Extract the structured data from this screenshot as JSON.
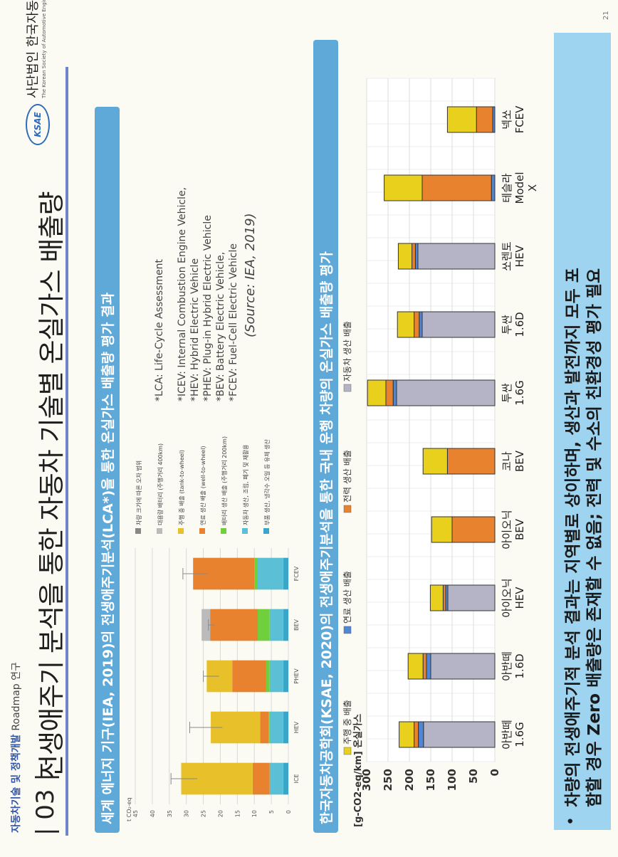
{
  "header": {
    "top_label_bold": "자동차기술 및 정책개발",
    "top_label_rest": "Roadmap 연구",
    "title_number": "| 03 |",
    "title": "전생애주기 분석을 통한 자동차 기술별 온실가스 배출량",
    "logo_text": "KSAE",
    "logo_name": "사단법인 한국자동차공학회",
    "logo_eng": "The Korean Society of Automotive Engineers"
  },
  "section1": {
    "banner": "세계 에너지 기구(IEA, 2019)의  전생애주기분석(LCA*)을 통한 온실가스 배출량 평가 결과"
  },
  "chart_data": [
    {
      "type": "bar",
      "stacked": true,
      "ylabel": "t CO₂-eq",
      "ylim": [
        0,
        45
      ],
      "yticks": [
        0,
        5,
        10,
        15,
        20,
        25,
        30,
        35,
        40,
        45
      ],
      "categories": [
        "ICE",
        "HEV",
        "PHEV",
        "BEV",
        "FCEV"
      ],
      "grid": true,
      "legend_position": "right",
      "legend": [
        {
          "name": "차량 크기에 따른 오차 범위",
          "color": "#888888"
        },
        {
          "name": "대용량 배터리 (주행거리 400km)",
          "color": "#bbbbbb"
        },
        {
          "name": "주행 중 배출 (tank-to-wheel)",
          "color": "#e8c12a"
        },
        {
          "name": "연료 생산 배출 (well-to-wheel)",
          "color": "#e8822e"
        },
        {
          "name": "배터리 생산 배출 (주행거리 200km)",
          "color": "#6fcf3d"
        },
        {
          "name": "자동차 생산, 조립, 폐기 및 재활용",
          "color": "#5bc0d6"
        },
        {
          "name": "부품 생산, 냉각수 오일 등 유체 생산",
          "color": "#3aa6c9"
        }
      ],
      "series": [
        {
          "name": "부품 생산",
          "color": "#3aa6c9",
          "values": [
            1.5,
            1.5,
            1.5,
            1.5,
            1.5
          ]
        },
        {
          "name": "자동차 생산",
          "color": "#5bc0d6",
          "values": [
            4.0,
            4.0,
            4.0,
            4.0,
            7.5
          ]
        },
        {
          "name": "배터리 생산",
          "color": "#6fcf3d",
          "values": [
            0,
            0.3,
            1.0,
            3.5,
            1.0
          ]
        },
        {
          "name": "연료 생산",
          "color": "#e8822e",
          "values": [
            5.0,
            2.5,
            10.0,
            14.0,
            18.0
          ]
        },
        {
          "name": "주행 중",
          "color": "#e8c12a",
          "values": [
            21.0,
            14.5,
            7.5,
            0,
            0
          ]
        },
        {
          "name": "대용량 배터리",
          "color": "#bbbbbb",
          "values": [
            0,
            0,
            0,
            2.5,
            0
          ]
        }
      ],
      "error_bar_top": [
        34.5,
        29.0,
        25.0,
        23.5,
        31.0
      ]
    },
    {
      "type": "bar",
      "stacked": true,
      "ylabel": "[g-CO2-eq/km] 온실가스",
      "ylim": [
        0,
        300
      ],
      "yticks": [
        0,
        50,
        100,
        150,
        200,
        250,
        300
      ],
      "categories": [
        "아반떼 1.6G",
        "아반떼 1.6D",
        "아이오닉 HEV",
        "아이오닉 BEV",
        "코나 BEV",
        "투싼 1.6G",
        "투싼 1.6D",
        "쏘렌토 HEV",
        "테슬라 Model X",
        "넥쏘 FCEV"
      ],
      "legend_position": "top",
      "legend": [
        {
          "name": "주행 중 배출",
          "color": "#e8d01c"
        },
        {
          "name": "연료 생산 배출",
          "color": "#4f86d6"
        },
        {
          "name": "전력 생산 배출",
          "color": "#e8822e"
        },
        {
          "name": "자동차 생산 배출",
          "color": "#b4b4c6"
        }
      ],
      "series": [
        {
          "name": "자동차 생산 배출",
          "color": "#b4b4c6",
          "values": [
            167,
            150,
            110,
            0,
            0,
            230,
            170,
            180,
            0,
            0
          ]
        },
        {
          "name": "연료 생산 배출",
          "color": "#4f86d6",
          "values": [
            12,
            10,
            5,
            0,
            0,
            8,
            7,
            6,
            8,
            5
          ]
        },
        {
          "name": "전력 생산 배출",
          "color": "#e8822e",
          "values": [
            10,
            8,
            6,
            100,
            111,
            17,
            12,
            8,
            162,
            38
          ]
        },
        {
          "name": "주행 중 배출",
          "color": "#e8d01c",
          "values": [
            35,
            35,
            30,
            48,
            57,
            43,
            39,
            32,
            89,
            68
          ]
        }
      ]
    }
  ],
  "notes": {
    "lca": "*LCA: Life-Cycle Assessment",
    "items": [
      "*ICEV: Internal Combustion Engine Vehicle,",
      "*HEV: Hybrid Electric Vehicle",
      "*PHEV: Plug-in Hybrid Electric Vehicle",
      "*BEV: Battery Electric Vehicle,",
      "*FCEV: Fuel-Cell Electric Vehicle"
    ],
    "source": "(Source: IEA, 2019)"
  },
  "section2": {
    "banner": "한국자동차공학회(KSAE, 2020)의  전생애주기분석을 통한 국내 운행 차량의 온실가스 배출량 평가"
  },
  "conclusion": {
    "bullet": "•",
    "line1": "차량의 전생애주기적 분석 결과는 지역별로 상이하며, 생산과 발전까지 모두 포",
    "line2": "함할 경우 Zero 배출량은 존재할 수 없음; 전력 및 수소의 친환경성 평가 필요"
  },
  "page_number": "21"
}
